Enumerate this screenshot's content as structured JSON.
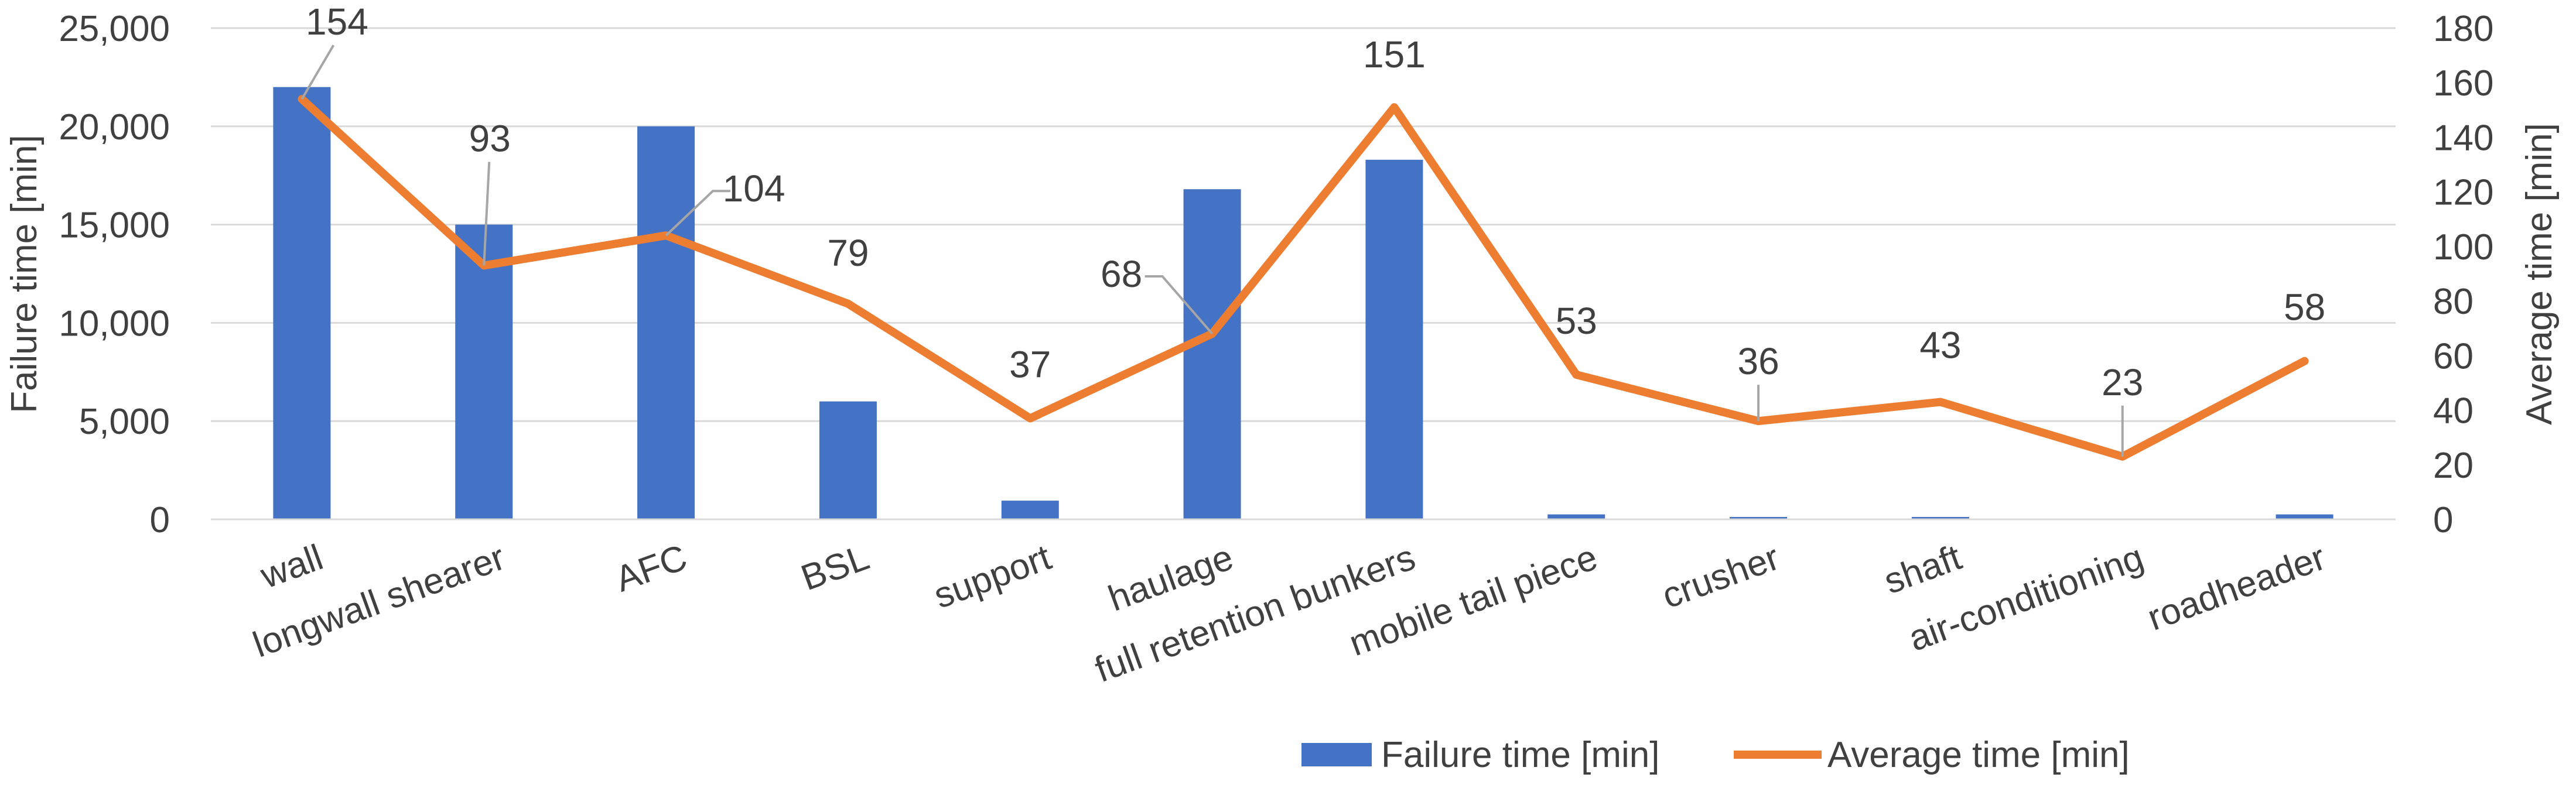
{
  "chart_data": {
    "type": "bar+line",
    "categories": [
      "wall",
      "longwall shearer",
      "AFC",
      "BSL",
      "support",
      "haulage",
      "full retention bunkers",
      "mobile tail piece",
      "crusher",
      "shaft",
      "air-conditioning",
      "roadheader"
    ],
    "series": [
      {
        "name": "Failure time [min]",
        "type": "bar",
        "axis": "left",
        "color": "#4472C4",
        "values": [
          22000,
          15000,
          20000,
          6000,
          950,
          16800,
          18300,
          250,
          120,
          120,
          0,
          250
        ]
      },
      {
        "name": "Average time [min]",
        "type": "line",
        "axis": "right",
        "color": "#ED7D31",
        "values": [
          154,
          93,
          104,
          79,
          37,
          68,
          151,
          53,
          36,
          43,
          23,
          58
        ],
        "labels": [
          "154",
          "93",
          "104",
          "79",
          "37",
          "68",
          "151",
          "53",
          "36",
          "43",
          "23",
          "58"
        ]
      }
    ],
    "y_left": {
      "label": "Failure time [min]",
      "lim": [
        0,
        25000
      ],
      "ticks": [
        0,
        5000,
        10000,
        15000,
        20000,
        25000
      ],
      "tick_labels": [
        "0",
        "5,000",
        "10,000",
        "15,000",
        "20,000",
        "25,000"
      ]
    },
    "y_right": {
      "label": "Average time [min]",
      "lim": [
        0,
        180
      ],
      "ticks": [
        0,
        20,
        40,
        60,
        80,
        100,
        120,
        140,
        160,
        180
      ],
      "tick_labels": [
        "0",
        "20",
        "40",
        "60",
        "80",
        "100",
        "120",
        "140",
        "160",
        "180"
      ]
    },
    "grid": true,
    "legend": {
      "position": "bottom",
      "entries": [
        "Failure time [min]",
        "Average time [min]"
      ]
    },
    "colors": {
      "grid": "#D9D9D9",
      "text": "#404040",
      "leader": "#A6A6A6"
    }
  }
}
